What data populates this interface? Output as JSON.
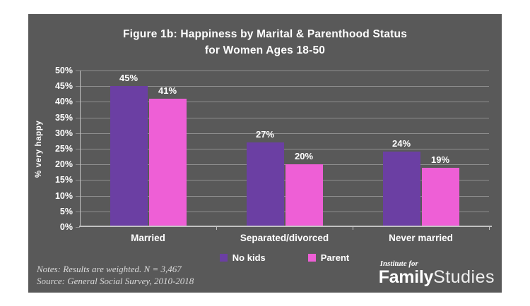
{
  "title": {
    "line1": "Figure 1b: Happiness by Marital & Parenthood Status",
    "line2": "for Women Ages 18-50"
  },
  "chart_data": {
    "type": "bar",
    "categories": [
      "Married",
      "Separated/divorced",
      "Never married"
    ],
    "series": [
      {
        "name": "No kids",
        "color": "#6b3fa3",
        "values": [
          45,
          27,
          24
        ]
      },
      {
        "name": "Parent",
        "color": "#ee5fd6",
        "values": [
          41,
          20,
          19
        ]
      }
    ],
    "value_labels": [
      [
        "45%",
        "41%"
      ],
      [
        "27%",
        "20%"
      ],
      [
        "24%",
        "19%"
      ]
    ],
    "ylabel": "% very happy",
    "ylim": [
      0,
      50
    ],
    "yticks": [
      "50%",
      "45%",
      "40%",
      "35%",
      "30%",
      "25%",
      "20%",
      "15%",
      "10%",
      "5%",
      "0%"
    ],
    "grid": true,
    "legend_position": "bottom"
  },
  "notes": {
    "line1": "Notes: Results are weighted. N = 3,467",
    "line2": "Source: General Social Survey, 2010-2018"
  },
  "logo": {
    "tagline": "Institute for",
    "name_bold": "Family",
    "name_regular": "Studies"
  },
  "colors": {
    "card_bg": "#595959",
    "text": "#ffffff",
    "gridline": "#8f8f8f",
    "axis": "#c2c2c2",
    "notes_text": "#d9d9d9",
    "no_kids": "#6b3fa3",
    "parent": "#ee5fd6"
  }
}
